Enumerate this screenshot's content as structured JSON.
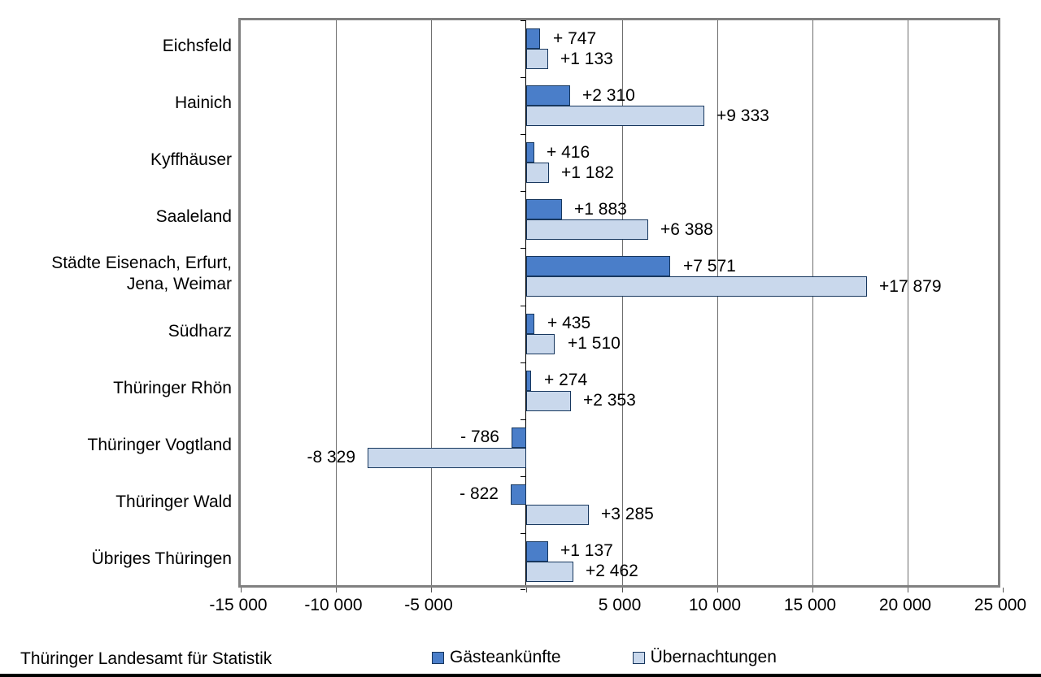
{
  "chart_data": {
    "type": "bar",
    "orientation": "horizontal",
    "title": "",
    "xlabel": "",
    "ylabel": "",
    "xlim": [
      -15000,
      25000
    ],
    "grid": true,
    "legend_position": "bottom",
    "categories": [
      "Eichsfeld",
      "Hainich",
      "Kyffhäuser",
      "Saaleland",
      "Städte Eisenach, Erfurt, Jena, Weimar",
      "Südharz",
      "Thüringer Rhön",
      "Thüringer Vogtland",
      "Thüringer Wald",
      "Übriges Thüringen"
    ],
    "series": [
      {
        "name": "Gästeankünfte",
        "color": "#4A7EC9",
        "border_color": "#17375E",
        "values": [
          747,
          2310,
          416,
          1883,
          7571,
          435,
          274,
          -786,
          -822,
          1137
        ],
        "labels": [
          "+ 747",
          "+2 310",
          "+ 416",
          "+1 883",
          "+7 571",
          "+ 435",
          "+ 274",
          "- 786",
          "- 822",
          "+1 137"
        ]
      },
      {
        "name": "Übernachtungen",
        "color": "#C9D8EC",
        "border_color": "#17375E",
        "values": [
          1133,
          9333,
          1182,
          6388,
          17879,
          1510,
          2353,
          -8329,
          3285,
          2462
        ],
        "labels": [
          "+1 133",
          "+9 333",
          "+1 182",
          "+6 388",
          "+17 879",
          "+1 510",
          "+2 353",
          "-8 329",
          "+3 285",
          "+2 462"
        ]
      }
    ],
    "x_ticks": [
      {
        "value": -15000,
        "label": "-15 000"
      },
      {
        "value": -10000,
        "label": "-10 000"
      },
      {
        "value": -5000,
        "label": "-5 000"
      },
      {
        "value": 0,
        "label": ""
      },
      {
        "value": 5000,
        "label": "5 000"
      },
      {
        "value": 10000,
        "label": "10 000"
      },
      {
        "value": 15000,
        "label": "15 000"
      },
      {
        "value": 20000,
        "label": "20 000"
      },
      {
        "value": 25000,
        "label": "25 000"
      }
    ]
  },
  "footer": {
    "source": "Thüringer Landesamt für Statistik"
  }
}
